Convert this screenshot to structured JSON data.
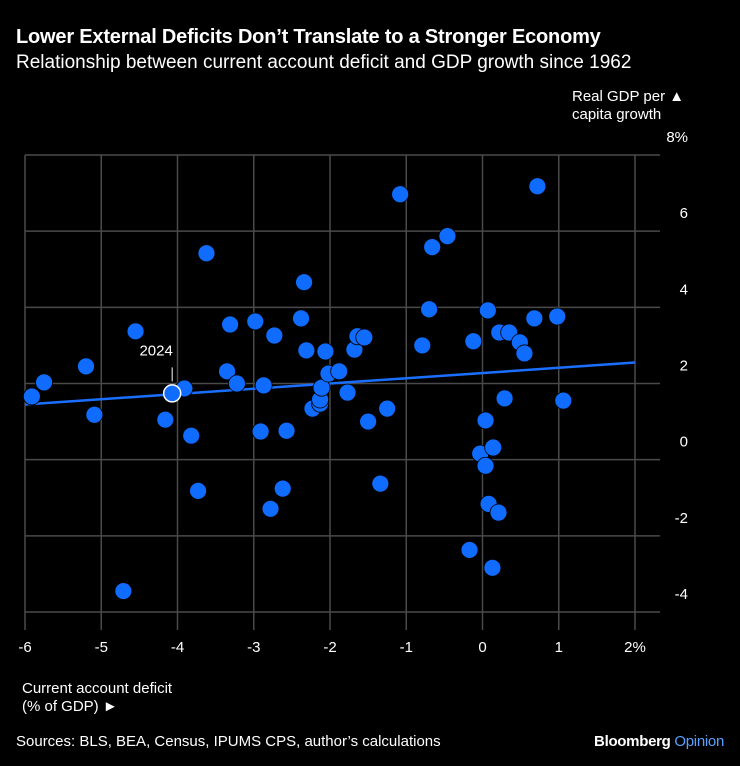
{
  "chart_data": {
    "type": "scatter",
    "title": "Lower External Deficits Don’t Translate to a Stronger Economy",
    "subtitle": "Relationship between current account deficit and GDP growth since 1962",
    "xlabel": "Current account deficit (% of GDP) ►",
    "ylabel": "Real GDP per ▲ capita growth",
    "xlim": [
      -6,
      2
    ],
    "ylim": [
      -4,
      8
    ],
    "x_ticks": [
      "-6",
      "-5",
      "-4",
      "-3",
      "-2",
      "-1",
      "0",
      "1",
      "2%"
    ],
    "y_ticks": [
      "-4",
      "-2",
      "0",
      "2",
      "4",
      "6",
      "8%"
    ],
    "grid": true,
    "colors": {
      "points": "#0f6cff",
      "trend": "#1a6fff",
      "highlight_outline": "#ffffff",
      "grid": "#4a4a4a"
    },
    "annotation": {
      "label": "2024",
      "x": -4.07,
      "y": 1.74
    },
    "trendline": {
      "x": [
        -6,
        2
      ],
      "y": [
        1.45,
        2.55
      ]
    },
    "points": [
      [
        -5.91,
        1.66
      ],
      [
        -5.75,
        2.03
      ],
      [
        -5.2,
        2.45
      ],
      [
        -5.09,
        1.18
      ],
      [
        -4.71,
        -3.45
      ],
      [
        -4.55,
        3.37
      ],
      [
        -4.16,
        1.05
      ],
      [
        -3.91,
        1.87
      ],
      [
        -3.82,
        0.63
      ],
      [
        -3.73,
        -0.82
      ],
      [
        -3.62,
        5.42
      ],
      [
        -3.35,
        2.32
      ],
      [
        -3.31,
        3.55
      ],
      [
        -3.22,
        2.0
      ],
      [
        -2.98,
        3.63
      ],
      [
        -2.91,
        0.74
      ],
      [
        -2.87,
        1.95
      ],
      [
        -2.78,
        -1.29
      ],
      [
        -2.73,
        3.26
      ],
      [
        -2.62,
        -0.76
      ],
      [
        -2.57,
        0.76
      ],
      [
        -2.38,
        3.71
      ],
      [
        -2.34,
        4.66
      ],
      [
        -2.31,
        2.87
      ],
      [
        -2.23,
        1.34
      ],
      [
        -2.13,
        1.47
      ],
      [
        -2.13,
        1.58
      ],
      [
        -2.11,
        1.89
      ],
      [
        -2.06,
        2.84
      ],
      [
        -2.02,
        2.26
      ],
      [
        -1.88,
        2.32
      ],
      [
        -1.77,
        1.76
      ],
      [
        -1.68,
        2.89
      ],
      [
        -1.64,
        3.24
      ],
      [
        -1.55,
        3.21
      ],
      [
        -1.5,
        1.0
      ],
      [
        -1.34,
        -0.63
      ],
      [
        -1.25,
        1.34
      ],
      [
        -1.08,
        6.97
      ],
      [
        -0.79,
        3.0
      ],
      [
        -0.7,
        3.95
      ],
      [
        -0.66,
        5.58
      ],
      [
        -0.46,
        5.87
      ],
      [
        -0.17,
        -2.37
      ],
      [
        -0.12,
        3.11
      ],
      [
        -0.03,
        0.16
      ],
      [
        0.04,
        1.03
      ],
      [
        0.04,
        -0.16
      ],
      [
        0.07,
        3.92
      ],
      [
        0.08,
        -1.16
      ],
      [
        0.13,
        -2.84
      ],
      [
        0.14,
        0.32
      ],
      [
        0.21,
        -1.39
      ],
      [
        0.22,
        3.34
      ],
      [
        0.29,
        1.61
      ],
      [
        0.35,
        3.34
      ],
      [
        0.49,
        3.08
      ],
      [
        0.55,
        2.79
      ],
      [
        0.68,
        3.71
      ],
      [
        0.72,
        7.18
      ],
      [
        0.98,
        3.76
      ],
      [
        1.06,
        1.55
      ]
    ]
  },
  "footer": {
    "source": "Sources: BLS, BEA, Census, IPUMS CPS, author’s calculations",
    "brand": "Bloomberg",
    "brand_suffix": "Opinion"
  }
}
